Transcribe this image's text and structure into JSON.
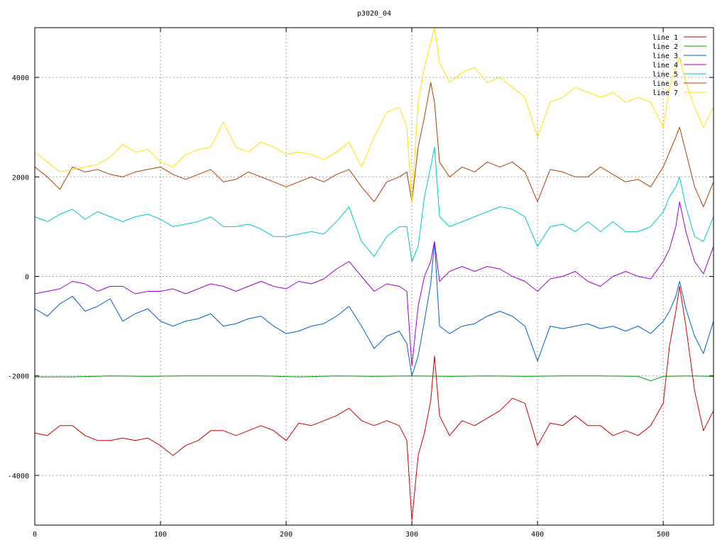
{
  "chart_data": {
    "type": "line",
    "title": "p3020_04",
    "xlabel": "",
    "ylabel": "",
    "xlim": [
      0,
      540
    ],
    "ylim": [
      -5000,
      5000
    ],
    "xticks": [
      0,
      100,
      200,
      300,
      400,
      500
    ],
    "yticks": [
      -4000,
      -2000,
      0,
      2000,
      4000
    ],
    "grid": true,
    "legend_position": "top-right",
    "series": [
      {
        "name": "line 1",
        "color": "#cc0000",
        "x": [
          0,
          10,
          20,
          30,
          40,
          50,
          60,
          70,
          80,
          90,
          100,
          110,
          120,
          130,
          140,
          150,
          160,
          170,
          180,
          190,
          200,
          210,
          220,
          230,
          240,
          250,
          260,
          270,
          280,
          290,
          296,
          300,
          305,
          310,
          315,
          318,
          322,
          330,
          340,
          350,
          360,
          370,
          380,
          390,
          400,
          410,
          420,
          430,
          440,
          450,
          460,
          470,
          480,
          490,
          500,
          505,
          510,
          513,
          518,
          525,
          532,
          540
        ],
        "y": [
          -3150,
          -3200,
          -3000,
          -3000,
          -3200,
          -3300,
          -3300,
          -3250,
          -3300,
          -3250,
          -3400,
          -3600,
          -3400,
          -3300,
          -3100,
          -3100,
          -3200,
          -3100,
          -3000,
          -3100,
          -3300,
          -2950,
          -3000,
          -2900,
          -2800,
          -2650,
          -2900,
          -3000,
          -2900,
          -3000,
          -3300,
          -4900,
          -3600,
          -3150,
          -2500,
          -1600,
          -2800,
          -3200,
          -2900,
          -3000,
          -2850,
          -2700,
          -2450,
          -2550,
          -3400,
          -2950,
          -3000,
          -2800,
          -3000,
          -3000,
          -3200,
          -3100,
          -3200,
          -3000,
          -2550,
          -1400,
          -700,
          -200,
          -1000,
          -2300,
          -3100,
          -2700
        ]
      },
      {
        "name": "line 2",
        "color": "#00a000",
        "x": [
          0,
          30,
          60,
          90,
          120,
          150,
          180,
          210,
          240,
          270,
          300,
          330,
          360,
          390,
          420,
          450,
          480,
          490,
          500,
          520,
          540
        ],
        "y": [
          -2020,
          -2020,
          -2000,
          -2010,
          -2000,
          -2000,
          -2000,
          -2020,
          -2000,
          -2010,
          -2000,
          -2010,
          -2000,
          -2010,
          -2000,
          -2000,
          -2010,
          -2100,
          -2010,
          -2000,
          -2010
        ]
      },
      {
        "name": "line 3",
        "color": "#0060d0",
        "x": [
          0,
          10,
          20,
          30,
          40,
          50,
          60,
          70,
          80,
          90,
          100,
          110,
          120,
          130,
          140,
          150,
          160,
          170,
          180,
          190,
          200,
          210,
          220,
          230,
          240,
          250,
          260,
          270,
          280,
          290,
          296,
          300,
          305,
          310,
          315,
          318,
          322,
          330,
          340,
          350,
          360,
          370,
          380,
          390,
          400,
          410,
          420,
          430,
          440,
          450,
          460,
          470,
          480,
          490,
          500,
          505,
          510,
          513,
          518,
          525,
          532,
          540
        ],
        "y": [
          -650,
          -800,
          -550,
          -400,
          -700,
          -600,
          -450,
          -900,
          -750,
          -650,
          -900,
          -1000,
          -900,
          -850,
          -750,
          -1000,
          -950,
          -850,
          -800,
          -1000,
          -1150,
          -1100,
          -1000,
          -950,
          -800,
          -600,
          -1000,
          -1450,
          -1200,
          -1100,
          -1350,
          -2000,
          -1600,
          -900,
          -150,
          700,
          -1000,
          -1150,
          -1000,
          -950,
          -800,
          -700,
          -800,
          -1000,
          -1700,
          -1000,
          -1050,
          -1000,
          -950,
          -1050,
          -1000,
          -1100,
          -1000,
          -1150,
          -900,
          -700,
          -400,
          -100,
          -650,
          -1200,
          -1550,
          -900
        ]
      },
      {
        "name": "line 4",
        "color": "#a000d0",
        "x": [
          0,
          10,
          20,
          30,
          40,
          50,
          60,
          70,
          80,
          90,
          100,
          110,
          120,
          130,
          140,
          150,
          160,
          170,
          180,
          190,
          200,
          210,
          220,
          230,
          240,
          250,
          260,
          270,
          280,
          290,
          296,
          300,
          305,
          310,
          315,
          318,
          322,
          330,
          340,
          350,
          360,
          370,
          380,
          390,
          400,
          410,
          420,
          430,
          440,
          450,
          460,
          470,
          480,
          490,
          500,
          505,
          510,
          513,
          518,
          525,
          532,
          540
        ],
        "y": [
          -350,
          -300,
          -250,
          -100,
          -150,
          -300,
          -200,
          -200,
          -350,
          -300,
          -300,
          -250,
          -350,
          -250,
          -150,
          -200,
          -300,
          -200,
          -100,
          -200,
          -250,
          -100,
          -150,
          -50,
          150,
          300,
          0,
          -300,
          -150,
          -200,
          -300,
          -1800,
          -600,
          0,
          300,
          700,
          -100,
          100,
          200,
          100,
          200,
          150,
          0,
          -100,
          -300,
          -50,
          0,
          100,
          -100,
          -200,
          0,
          100,
          0,
          -50,
          300,
          550,
          1000,
          1500,
          900,
          300,
          50,
          600
        ]
      },
      {
        "name": "line 5",
        "color": "#00c8c8",
        "x": [
          0,
          10,
          20,
          30,
          40,
          50,
          60,
          70,
          80,
          90,
          100,
          110,
          120,
          130,
          140,
          150,
          160,
          170,
          180,
          190,
          200,
          210,
          220,
          230,
          240,
          250,
          260,
          270,
          280,
          290,
          296,
          300,
          305,
          310,
          315,
          318,
          322,
          330,
          340,
          350,
          360,
          370,
          380,
          390,
          400,
          410,
          420,
          430,
          440,
          450,
          460,
          470,
          480,
          490,
          500,
          505,
          510,
          513,
          518,
          525,
          532,
          540
        ],
        "y": [
          1200,
          1100,
          1250,
          1350,
          1150,
          1300,
          1200,
          1100,
          1200,
          1250,
          1150,
          1000,
          1050,
          1100,
          1200,
          1000,
          1000,
          1050,
          950,
          800,
          800,
          850,
          900,
          850,
          1100,
          1400,
          700,
          400,
          800,
          1000,
          1000,
          300,
          600,
          1600,
          2200,
          2600,
          1200,
          1000,
          1100,
          1200,
          1300,
          1400,
          1350,
          1200,
          600,
          1000,
          1050,
          900,
          1100,
          900,
          1100,
          900,
          900,
          1000,
          1300,
          1600,
          1800,
          2000,
          1400,
          800,
          700,
          1200
        ]
      },
      {
        "name": "line 6",
        "color": "#b04000",
        "x": [
          0,
          10,
          20,
          30,
          40,
          50,
          60,
          70,
          80,
          90,
          100,
          110,
          120,
          130,
          140,
          150,
          160,
          170,
          180,
          190,
          200,
          210,
          220,
          230,
          240,
          250,
          260,
          270,
          280,
          290,
          296,
          300,
          305,
          310,
          315,
          318,
          322,
          330,
          340,
          350,
          360,
          370,
          380,
          390,
          400,
          410,
          420,
          430,
          440,
          450,
          460,
          470,
          480,
          490,
          500,
          505,
          510,
          513,
          518,
          525,
          532,
          540
        ],
        "y": [
          2200,
          2000,
          1750,
          2200,
          2100,
          2150,
          2050,
          2000,
          2100,
          2150,
          2200,
          2050,
          1950,
          2050,
          2150,
          1900,
          1950,
          2100,
          2000,
          1900,
          1800,
          1900,
          2000,
          1900,
          2050,
          2150,
          1800,
          1500,
          1900,
          2000,
          2100,
          1500,
          2600,
          3200,
          3900,
          3500,
          2300,
          2000,
          2200,
          2100,
          2300,
          2200,
          2300,
          2100,
          1500,
          2150,
          2100,
          2000,
          2000,
          2200,
          2050,
          1900,
          1950,
          1800,
          2200,
          2500,
          2800,
          3000,
          2500,
          1800,
          1400,
          1900
        ]
      },
      {
        "name": "line 7",
        "color": "#ffe000",
        "x": [
          0,
          10,
          20,
          30,
          40,
          50,
          60,
          70,
          80,
          90,
          100,
          110,
          120,
          130,
          140,
          150,
          160,
          170,
          180,
          190,
          200,
          210,
          220,
          230,
          240,
          250,
          260,
          270,
          280,
          290,
          296,
          300,
          305,
          310,
          315,
          318,
          322,
          330,
          340,
          350,
          360,
          370,
          380,
          390,
          400,
          410,
          420,
          430,
          440,
          450,
          460,
          470,
          480,
          490,
          500,
          505,
          510,
          513,
          518,
          525,
          532,
          540
        ],
        "y": [
          2500,
          2300,
          2100,
          2150,
          2200,
          2250,
          2400,
          2650,
          2500,
          2550,
          2300,
          2200,
          2450,
          2550,
          2600,
          3100,
          2600,
          2500,
          2700,
          2600,
          2450,
          2500,
          2450,
          2350,
          2500,
          2700,
          2200,
          2800,
          3300,
          3400,
          3000,
          1500,
          3500,
          4200,
          4700,
          5000,
          4300,
          3900,
          4100,
          4200,
          3900,
          4000,
          3800,
          3600,
          2800,
          3500,
          3600,
          3800,
          3700,
          3600,
          3700,
          3500,
          3600,
          3500,
          3000,
          3800,
          4200,
          4400,
          3900,
          3400,
          3000,
          3400
        ]
      }
    ]
  }
}
